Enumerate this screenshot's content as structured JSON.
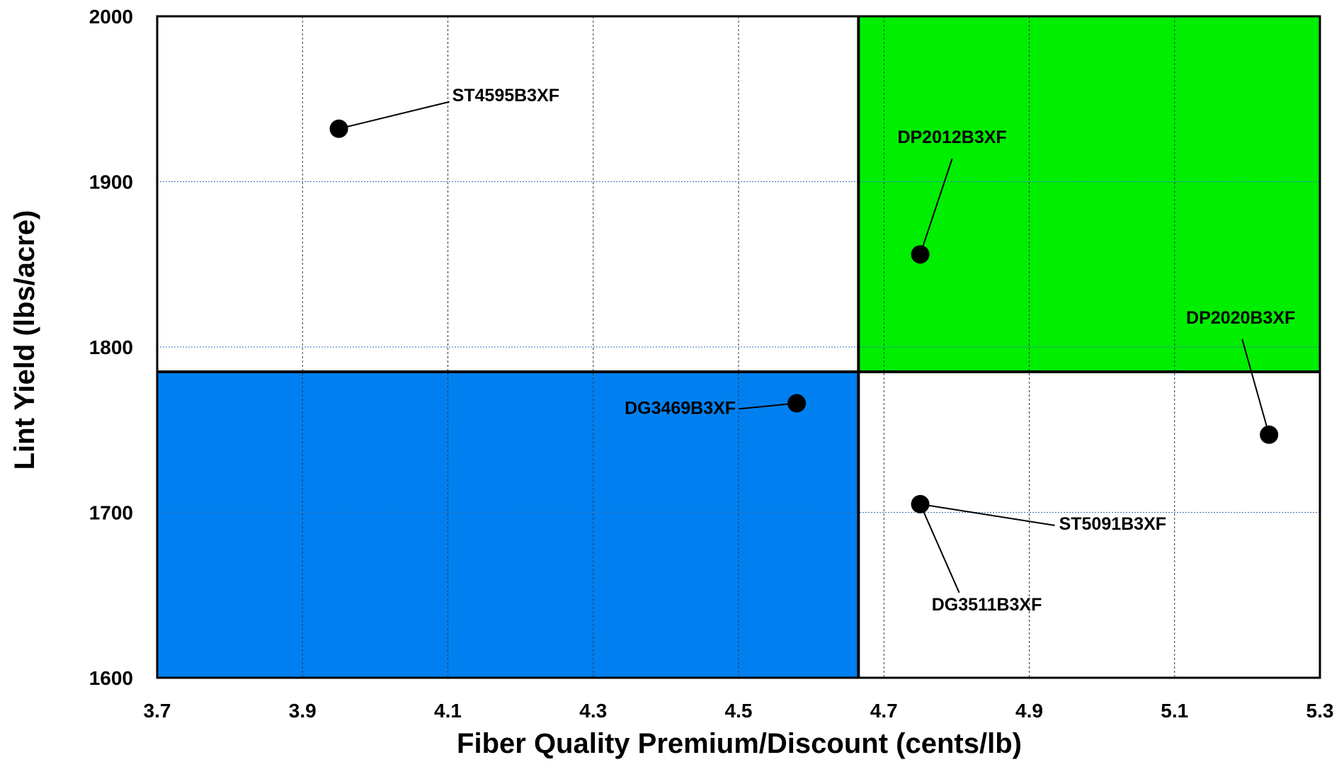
{
  "chart_data": {
    "type": "scatter",
    "title": "",
    "xlabel": "Fiber Quality Premium/Discount (cents/lb)",
    "ylabel": "Lint Yield (lbs/acre)",
    "xlim": [
      3.7,
      5.3
    ],
    "ylim": [
      1600,
      2000
    ],
    "xticks": [
      3.7,
      3.9,
      4.1,
      4.3,
      4.5,
      4.7,
      4.9,
      5.1,
      5.3
    ],
    "xtick_labels": [
      "3.7",
      "3.9",
      "4.1",
      "4.3",
      "4.5",
      "4.7",
      "4.9",
      "5.1",
      "5.3"
    ],
    "yticks": [
      1600,
      1700,
      1800,
      1900,
      2000
    ],
    "ytick_labels": [
      "1600",
      "1700",
      "1800",
      "1900",
      "2000"
    ],
    "grid": true,
    "quadrant_split": {
      "x": 4.665,
      "y": 1785
    },
    "quadrant_colors": {
      "high_quality_high_yield": "#00ee00",
      "low_quality_low_yield": "#0080f0"
    },
    "points": [
      {
        "name": "ST4595B3XF",
        "x": 3.95,
        "y": 1932
      },
      {
        "name": "DP2012B3XF",
        "x": 4.75,
        "y": 1856
      },
      {
        "name": "DP2020B3XF",
        "x": 5.23,
        "y": 1747
      },
      {
        "name": "DG3469B3XF",
        "x": 4.58,
        "y": 1766
      },
      {
        "name": "ST5091B3XF",
        "x": 4.75,
        "y": 1705
      },
      {
        "name": "DG3511B3XF",
        "x": 4.75,
        "y": 1705
      }
    ]
  }
}
